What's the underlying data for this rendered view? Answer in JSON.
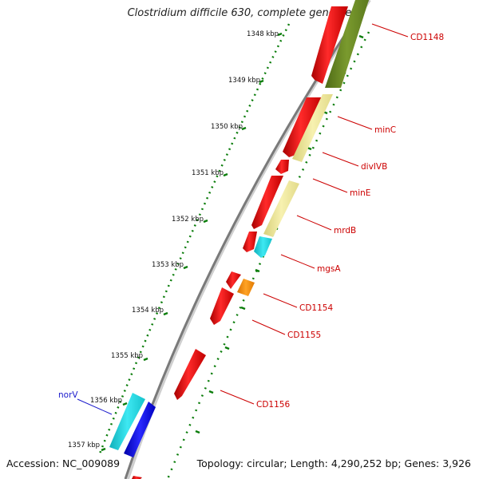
{
  "title": "Clostridium difficile 630, complete genome",
  "footer": {
    "accession": "Accession: NC_009089",
    "summary": "Topology: circular; Length: 4,290,252 bp; Genes: 3,926"
  },
  "scale_ticks": [
    "1348 kbp",
    "1349 kbp",
    "1350 kbp",
    "1351 kbp",
    "1352 kbp",
    "1353 kbp",
    "1354 kbp",
    "1355 kbp",
    "1356 kbp",
    "1357 kbp"
  ],
  "genes": [
    {
      "label": "CD1148",
      "color": "#cc0000"
    },
    {
      "label": "minC",
      "color": "#cc0000"
    },
    {
      "label": "divIVB",
      "color": "#cc0000"
    },
    {
      "label": "minE",
      "color": "#cc0000"
    },
    {
      "label": "mrdB",
      "color": "#cc0000"
    },
    {
      "label": "mgsA",
      "color": "#cc0000"
    },
    {
      "label": "CD1154",
      "color": "#cc0000"
    },
    {
      "label": "CD1155",
      "color": "#cc0000"
    },
    {
      "label": "CD1156",
      "color": "#cc0000"
    },
    {
      "label": "norV",
      "color": "#1a1acc"
    }
  ],
  "feature_colors": {
    "cds": "#ee1111",
    "olive": "#6b8e23",
    "pale_yellow": "#eee79a",
    "cyan": "#22d4e0",
    "orange": "#ff8c00",
    "blue": "#0a0ae6",
    "backbone": "#888888"
  }
}
